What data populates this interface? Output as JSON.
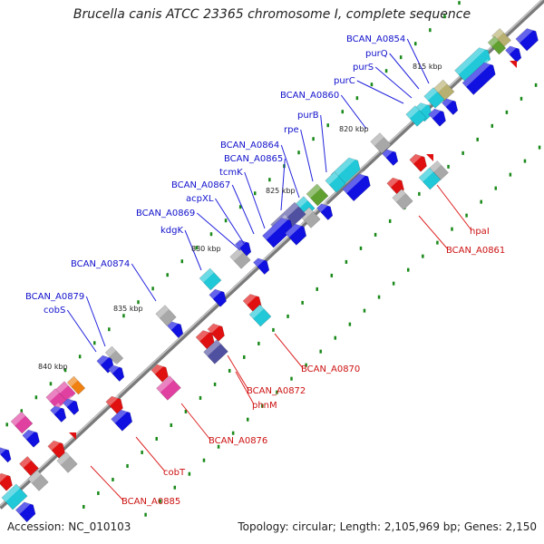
{
  "title": "Brucella canis ATCC 23365 chromosome I, complete sequence",
  "accession": "Accession: NC_010103",
  "topology": "Topology: circular; Length: 2,105,969 bp; Genes: 2,150",
  "colors": {
    "backbone": "#808080",
    "forward_label": "#1111cc",
    "reverse_label": "#cc1111",
    "blue": "#1010e0",
    "cyan": "#20c8d8",
    "red": "#e01010",
    "gray": "#a8a8a8",
    "purple": "#5050a0",
    "green": "#60a030",
    "pink": "#e040a0",
    "orange": "#f08010",
    "olive": "#b8b070"
  },
  "ticks": [
    "815 kbp",
    "820 kbp",
    "825 kbp",
    "830 kbp",
    "835 kbp",
    "840 kbp"
  ],
  "forward_labels": [
    "BCAN_A0854",
    "purQ",
    "purS",
    "purC",
    "BCAN_A0860",
    "purB",
    "rpe",
    "BCAN_A0864",
    "BCAN_A0865",
    "tcmK",
    "BCAN_A0867",
    "acpXL",
    "BCAN_A0869",
    "kdgK",
    "BCAN_A0874",
    "BCAN_A0879",
    "cobS"
  ],
  "reverse_labels": [
    "hpaI",
    "BCAN_A0861",
    "BCAN_A0870",
    "BCAN_A0872",
    "phnM",
    "BCAN_A0876",
    "cobT",
    "BCAN_A0885"
  ]
}
